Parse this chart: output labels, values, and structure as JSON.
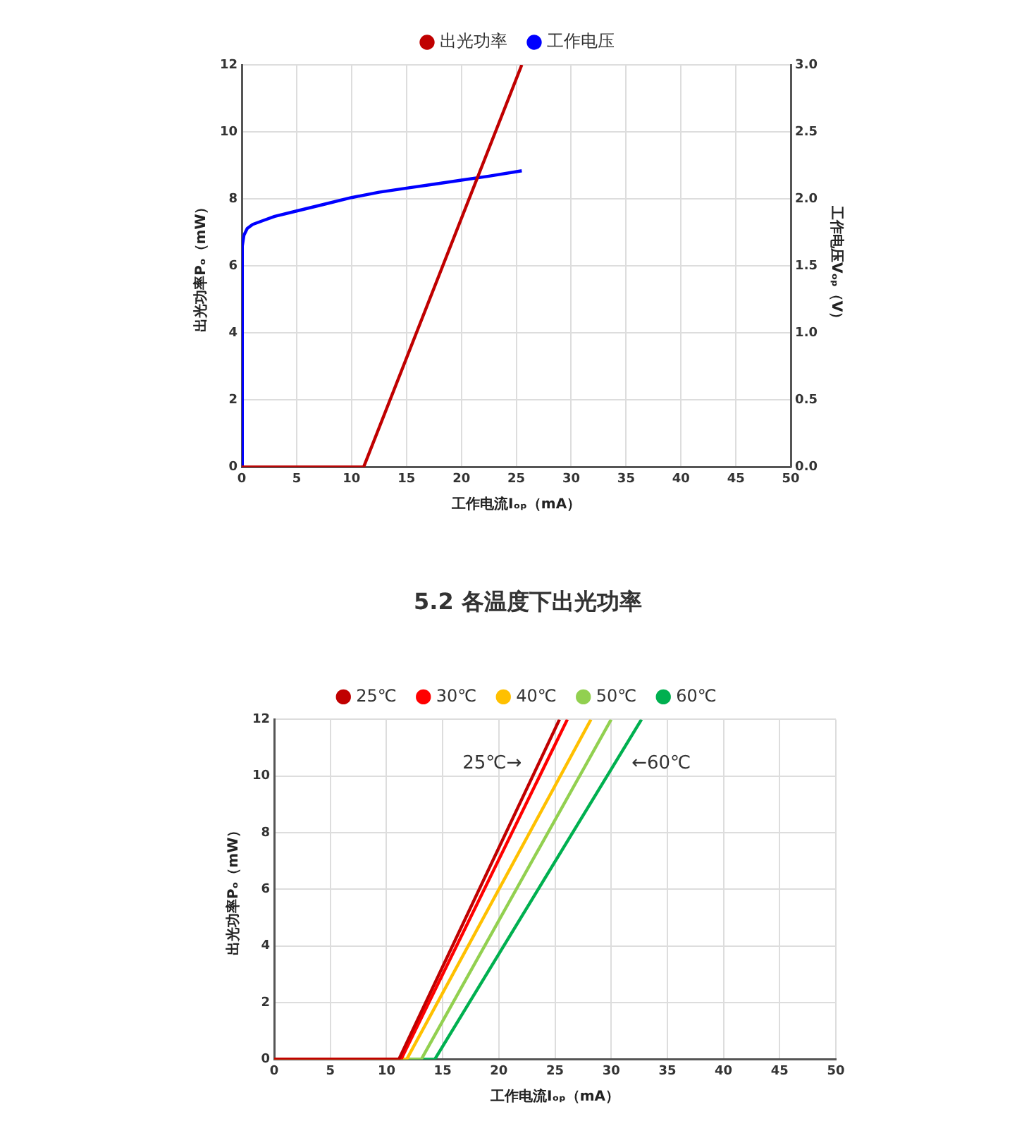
{
  "chart_data": [
    {
      "type": "line",
      "xlabel": "工作电流Iₒₚ（mA）",
      "ylabel": "出光功率Pₒ（mW）",
      "y2label": "工作电压Vₒₚ（V）",
      "xlim": [
        0,
        50
      ],
      "xticks": [
        0,
        5,
        10,
        15,
        20,
        25,
        30,
        35,
        40,
        45,
        50
      ],
      "ylim": [
        0,
        12
      ],
      "yticks": [
        0,
        2,
        4,
        6,
        8,
        10,
        12
      ],
      "y2lim": [
        0,
        3
      ],
      "y2ticks": [
        {
          "value": 0,
          "label": "0.0"
        },
        {
          "value": 0.5,
          "label": "0.5"
        },
        {
          "value": 1,
          "label": "1.0"
        },
        {
          "value": 1.5,
          "label": "1.5"
        },
        {
          "value": 2,
          "label": "2.0"
        },
        {
          "value": 2.5,
          "label": "2.5"
        },
        {
          "value": 3,
          "label": "3.0"
        }
      ],
      "grid": true,
      "legend": "top",
      "line_style": "solid",
      "series": [
        {
          "name": "出光功率",
          "color": "#c00000",
          "x": [
            0,
            11.1,
            25.5
          ],
          "values": [
            0,
            0,
            12
          ]
        },
        {
          "name": "工作电压",
          "color": "#0000ff",
          "axis": "y2",
          "x": [
            0,
            0.05,
            0.2,
            0.5,
            1,
            2,
            3,
            5,
            7.5,
            10,
            12.5,
            15,
            17.5,
            20,
            22.5,
            25.5
          ],
          "values": [
            0,
            1.65,
            1.73,
            1.78,
            1.81,
            1.84,
            1.87,
            1.91,
            1.96,
            2.01,
            2.05,
            2.08,
            2.11,
            2.14,
            2.17,
            2.21
          ]
        }
      ]
    },
    {
      "type": "line",
      "title": "5.2 各温度下出光功率",
      "xlabel": "工作电流Iₒₚ（mA）",
      "ylabel": "出光功率Pₒ（mW）",
      "xlim": [
        0,
        50
      ],
      "xticks": [
        0,
        5,
        10,
        15,
        20,
        25,
        30,
        35,
        40,
        45,
        50
      ],
      "ylim": [
        0,
        12
      ],
      "yticks": [
        0,
        2,
        4,
        6,
        8,
        10,
        12
      ],
      "grid": true,
      "legend": "top",
      "line_style": "solid",
      "annotations": [
        "25℃→",
        "←60℃"
      ],
      "series": [
        {
          "name": "25℃",
          "color": "#c00000",
          "x": [
            0,
            11.1,
            25.4
          ],
          "values": [
            0,
            0,
            12
          ]
        },
        {
          "name": "30℃",
          "color": "#ff0000",
          "x": [
            0,
            11.3,
            26.1
          ],
          "values": [
            0,
            0,
            12
          ]
        },
        {
          "name": "40℃",
          "color": "#ffc000",
          "x": [
            0,
            11.8,
            28.2
          ],
          "values": [
            0,
            0,
            12
          ]
        },
        {
          "name": "50℃",
          "color": "#92d050",
          "x": [
            0,
            13.1,
            30
          ],
          "values": [
            0,
            0,
            12
          ]
        },
        {
          "name": "60℃",
          "color": "#00b050",
          "x": [
            0,
            14.3,
            32.7
          ],
          "values": [
            0,
            0,
            12
          ]
        }
      ]
    }
  ]
}
